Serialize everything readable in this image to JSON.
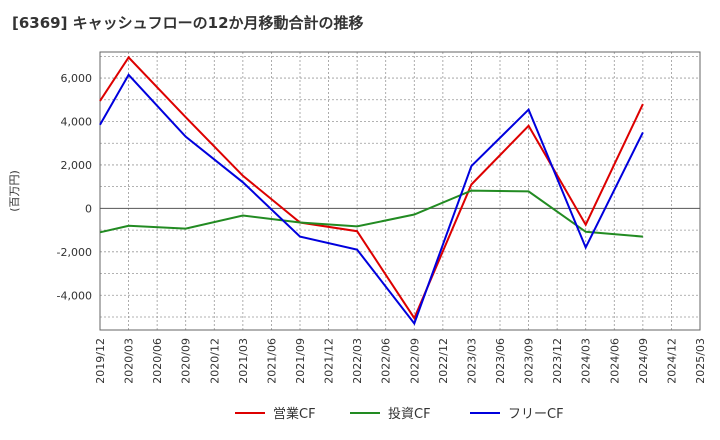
{
  "chart_data": {
    "type": "line",
    "title": "[6369]  キャッシュフローの12か月移動合計の推移",
    "ylabel": "(百万円)",
    "xlabel": "",
    "ylim": [
      -5600,
      7200
    ],
    "yticks": [
      6000,
      4000,
      2000,
      0,
      -2000,
      -4000
    ],
    "ytick_labels": [
      "6,000",
      "4,000",
      "2,000",
      "0",
      "-2,000",
      "-4,000"
    ],
    "categories": [
      "2019/12",
      "2020/03",
      "2020/06",
      "2020/09",
      "2020/12",
      "2021/03",
      "2021/06",
      "2021/09",
      "2021/12",
      "2022/03",
      "2022/06",
      "2022/09",
      "2022/12",
      "2023/03",
      "2023/06",
      "2023/09",
      "2023/12",
      "2024/03",
      "2024/06",
      "2024/09",
      "2024/12",
      "2025/03"
    ],
    "grid": true,
    "legend_position": "bottom",
    "series": [
      {
        "name": "営業CF",
        "color": "#dd0000",
        "values": [
          4950,
          6950,
          null,
          4200,
          null,
          1500,
          null,
          -650,
          null,
          -1050,
          null,
          -5050,
          null,
          1100,
          null,
          3800,
          null,
          -750,
          null,
          4800,
          null,
          null
        ]
      },
      {
        "name": "投資CF",
        "color": "#228b22",
        "values": [
          -1100,
          -800,
          null,
          -930,
          null,
          -330,
          null,
          -650,
          null,
          -830,
          null,
          -280,
          null,
          820,
          null,
          780,
          null,
          -1080,
          null,
          -1300,
          null,
          null
        ]
      },
      {
        "name": "フリーCF",
        "color": "#0000dd",
        "values": [
          3850,
          6150,
          null,
          3300,
          null,
          1200,
          null,
          -1300,
          null,
          -1900,
          null,
          -5300,
          null,
          1950,
          null,
          4550,
          null,
          -1800,
          null,
          3500,
          null,
          null
        ]
      }
    ]
  }
}
